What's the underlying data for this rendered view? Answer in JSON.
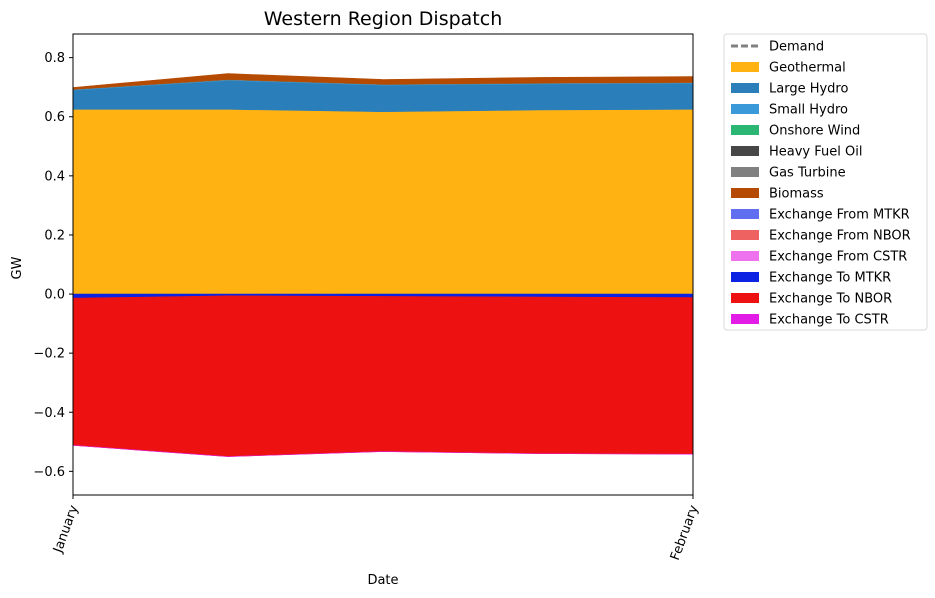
{
  "chart_data": {
    "type": "area",
    "title": "Western Region Dispatch",
    "xlabel": "Date",
    "ylabel": "GW",
    "ylim": [
      -0.68,
      0.88
    ],
    "yticks": [
      -0.6,
      -0.4,
      -0.2,
      0.0,
      0.2,
      0.4,
      0.6,
      0.8
    ],
    "ytick_labels": [
      "−0.6",
      "−0.4",
      "−0.2",
      "0.0",
      "0.2",
      "0.4",
      "0.6",
      "0.8"
    ],
    "x": [
      0,
      0.25,
      0.5,
      0.75,
      1.0
    ],
    "xlim": [
      0,
      1.0
    ],
    "xticks": [
      0,
      1.0
    ],
    "xtick_labels": [
      "January",
      "February"
    ],
    "grid": false,
    "legend_position": "outside-right-top",
    "positive_series": [
      {
        "name": "Geothermal",
        "color": "#FFB211",
        "values": [
          0.625,
          0.625,
          0.617,
          0.623,
          0.625
        ]
      },
      {
        "name": "Large Hydro",
        "color": "#2A7FBB",
        "values": [
          0.065,
          0.098,
          0.09,
          0.088,
          0.088
        ]
      },
      {
        "name": "Small Hydro",
        "color": "#3A9AD9",
        "values": [
          0.002,
          0.002,
          0.002,
          0.002,
          0.002
        ]
      },
      {
        "name": "Onshore Wind",
        "color": "#2BB673",
        "values": [
          0.0,
          0.0,
          0.0,
          0.0,
          0.0
        ]
      },
      {
        "name": "Heavy Fuel Oil",
        "color": "#474747",
        "values": [
          0.0,
          0.0,
          0.0,
          0.0,
          0.0
        ]
      },
      {
        "name": "Gas Turbine",
        "color": "#808080",
        "values": [
          0.001,
          0.001,
          0.001,
          0.001,
          0.001
        ]
      },
      {
        "name": "Biomass",
        "color": "#B54A02",
        "values": [
          0.006,
          0.02,
          0.016,
          0.019,
          0.02
        ]
      }
    ],
    "negative_series": [
      {
        "name": "Exchange To MTKR",
        "color": "#0D23E3",
        "values": [
          -0.014,
          -0.006,
          -0.008,
          -0.01,
          -0.012
        ]
      },
      {
        "name": "Exchange To NBOR",
        "color": "#EE1111",
        "values": [
          -0.498,
          -0.544,
          -0.525,
          -0.53,
          -0.53
        ]
      },
      {
        "name": "Exchange To CSTR",
        "color": "#E21BE6",
        "values": [
          0.0,
          0.0,
          0.0,
          0.0,
          0.0
        ]
      }
    ],
    "legend": [
      {
        "name": "Demand",
        "color": "#808080",
        "style": "dashed-line"
      },
      {
        "name": "Geothermal",
        "color": "#FFB211",
        "style": "patch"
      },
      {
        "name": "Large Hydro",
        "color": "#2A7FBB",
        "style": "patch"
      },
      {
        "name": "Small Hydro",
        "color": "#3A9AD9",
        "style": "patch"
      },
      {
        "name": "Onshore Wind",
        "color": "#2BB673",
        "style": "patch"
      },
      {
        "name": "Heavy Fuel Oil",
        "color": "#474747",
        "style": "patch"
      },
      {
        "name": "Gas Turbine",
        "color": "#808080",
        "style": "patch"
      },
      {
        "name": "Biomass",
        "color": "#B54A02",
        "style": "patch"
      },
      {
        "name": "Exchange From MTKR",
        "color": "#5F6FF0",
        "style": "patch"
      },
      {
        "name": "Exchange From NBOR",
        "color": "#EE6262",
        "style": "patch"
      },
      {
        "name": "Exchange From CSTR",
        "color": "#EE72EE",
        "style": "patch"
      },
      {
        "name": "Exchange To MTKR",
        "color": "#0D23E3",
        "style": "patch"
      },
      {
        "name": "Exchange To NBOR",
        "color": "#EE1111",
        "style": "patch"
      },
      {
        "name": "Exchange To CSTR",
        "color": "#E21BE6",
        "style": "patch"
      }
    ]
  }
}
